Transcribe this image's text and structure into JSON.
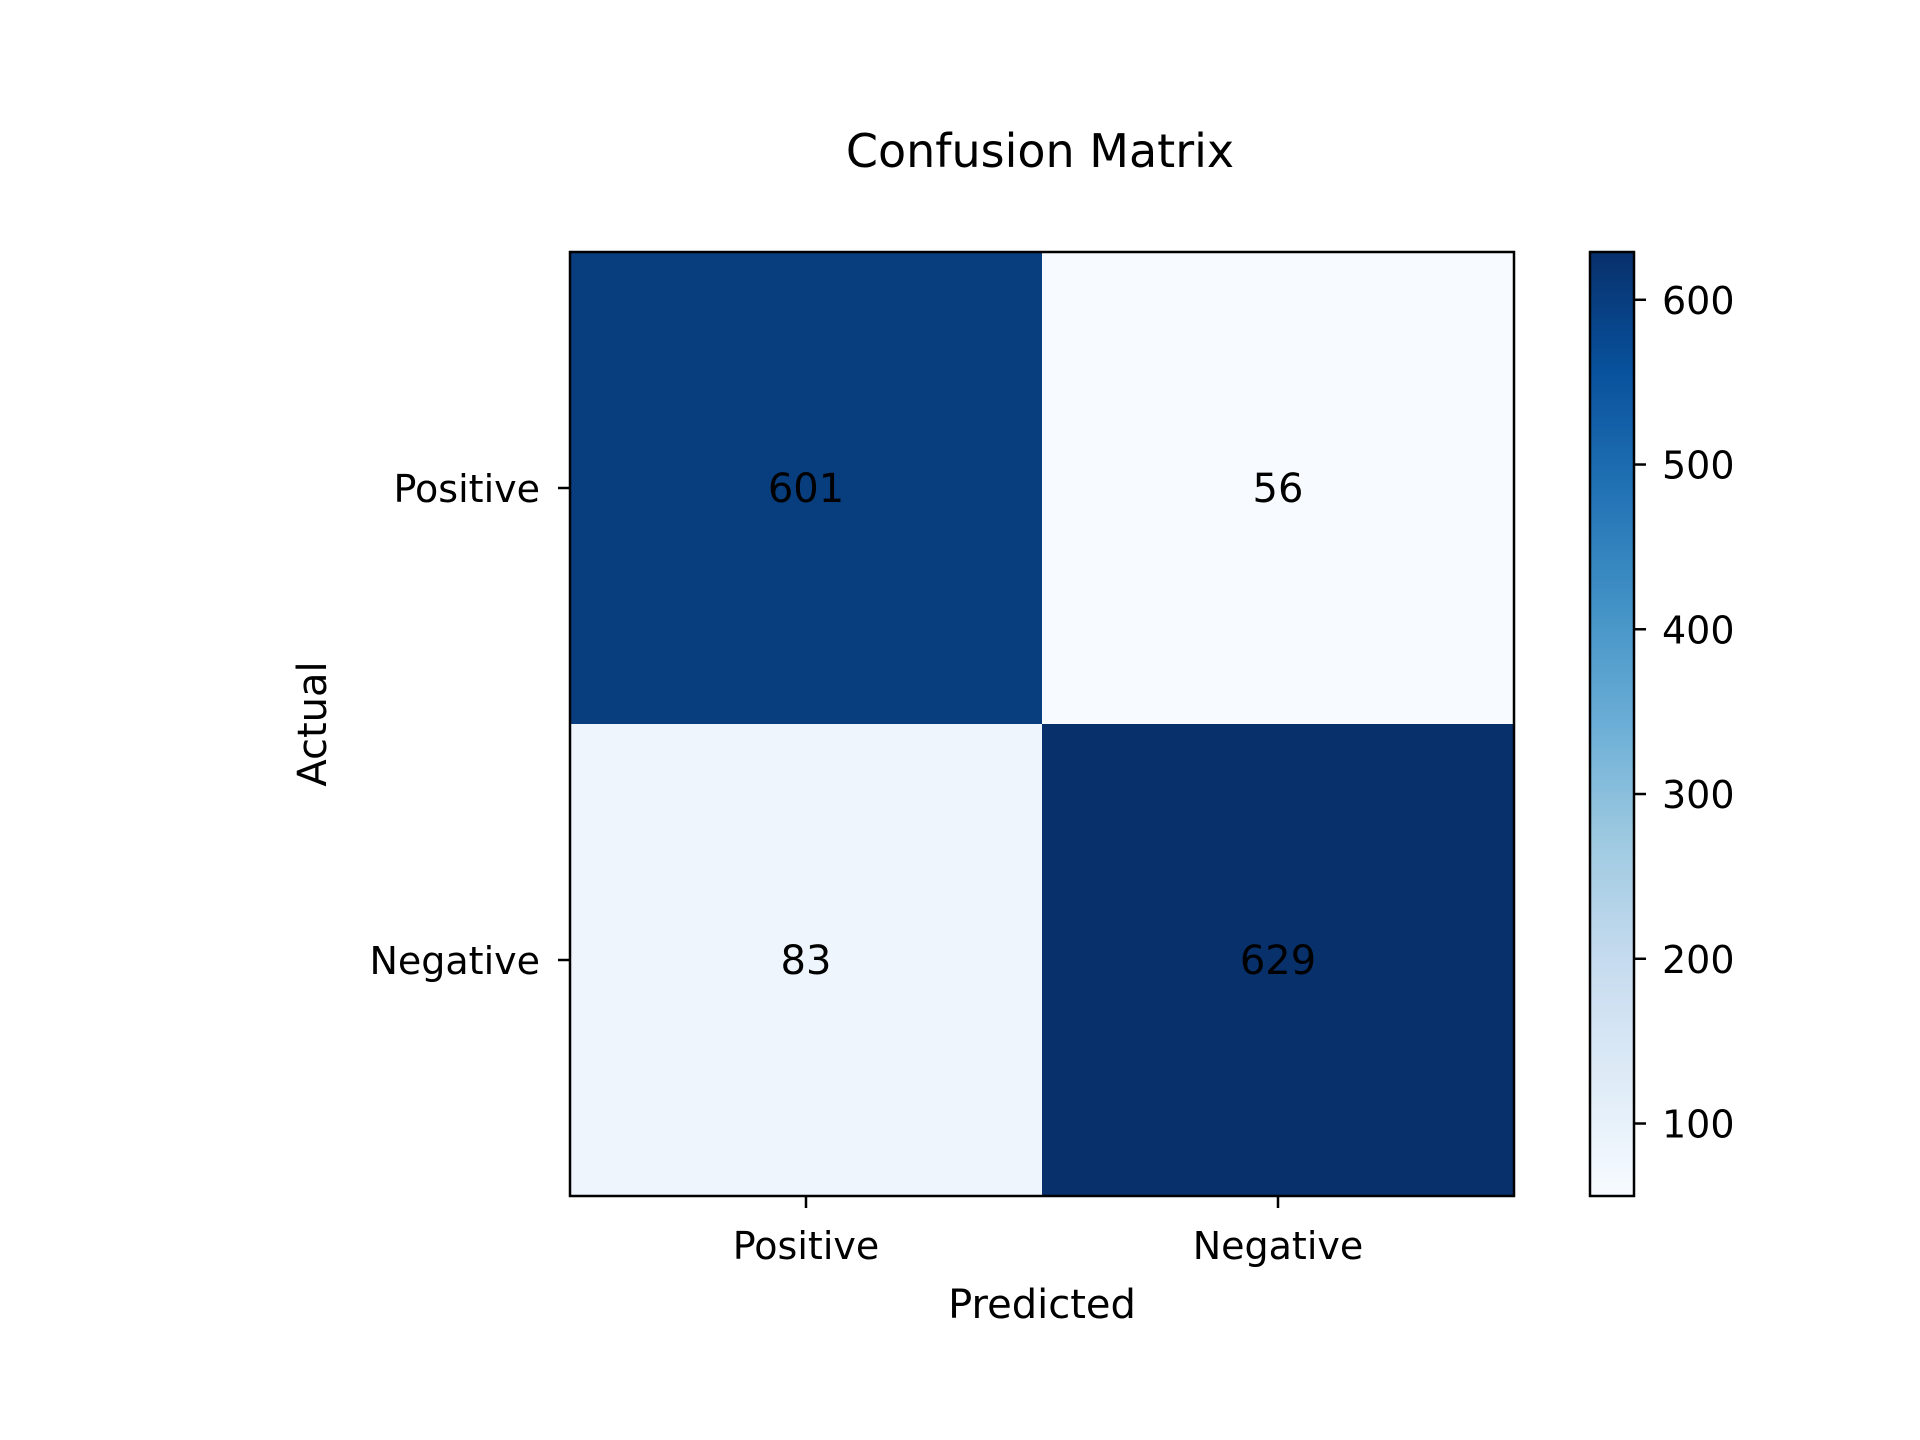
{
  "chart_data": {
    "type": "heatmap",
    "title": "Confusion Matrix",
    "xlabel": "Predicted",
    "ylabel": "Actual",
    "x_categories": [
      "Positive",
      "Negative"
    ],
    "y_categories": [
      "Positive",
      "Negative"
    ],
    "values": [
      [
        601,
        56
      ],
      [
        83,
        629
      ]
    ],
    "colormap": "Blues",
    "colorbar": {
      "min": 56,
      "max": 629,
      "ticks": [
        "100",
        "200",
        "300",
        "400",
        "500",
        "600"
      ]
    },
    "grid": false
  }
}
